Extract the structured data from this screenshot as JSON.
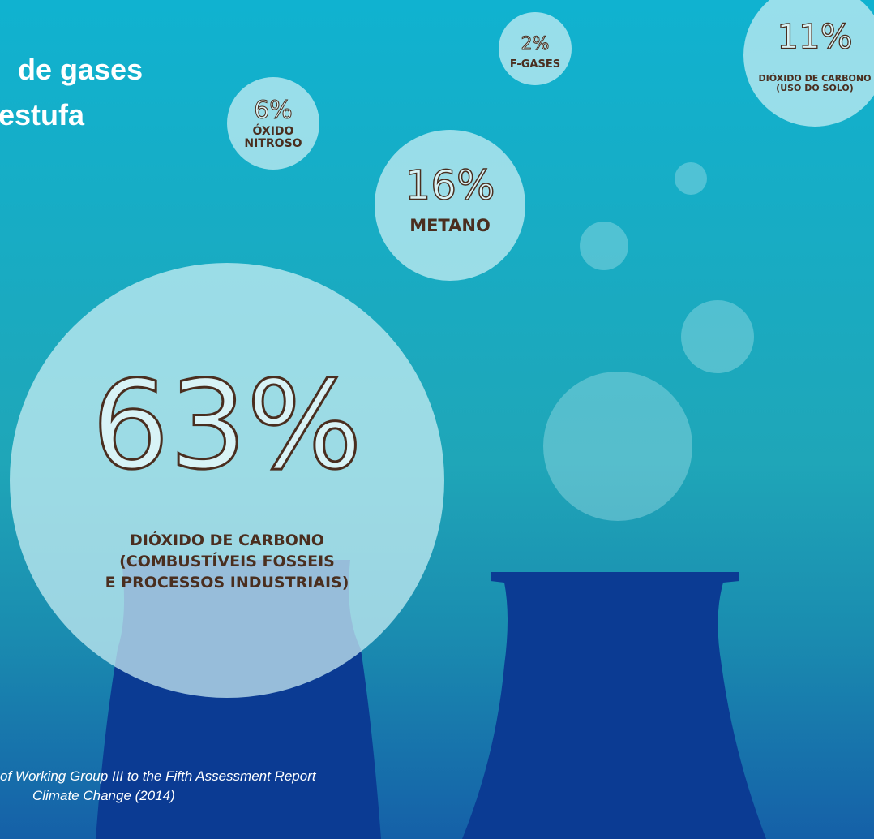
{
  "header": {
    "title": [
      "de gases",
      "estufa"
    ]
  },
  "bubbles": [
    {
      "percent": "63%",
      "label": [
        "DIÓXIDO DE CARBONO",
        "(COMBUSTÍVEIS FOSSEIS",
        "E PROCESSOS INDUSTRIAIS)"
      ]
    },
    {
      "percent": "16%",
      "label": [
        "METANO"
      ]
    },
    {
      "percent": "6%",
      "label": [
        "ÓXIDO",
        "NITROSO"
      ]
    },
    {
      "percent": "2%",
      "label": [
        "F-GASES"
      ]
    },
    {
      "percent": "11%",
      "label": [
        "DIÓXIDO DE CARBONO",
        "(USO DO SOLO)"
      ]
    }
  ],
  "source": [
    "of Working Group III to the Fifth Assessment Report",
    "Climate Change (2014)"
  ]
}
